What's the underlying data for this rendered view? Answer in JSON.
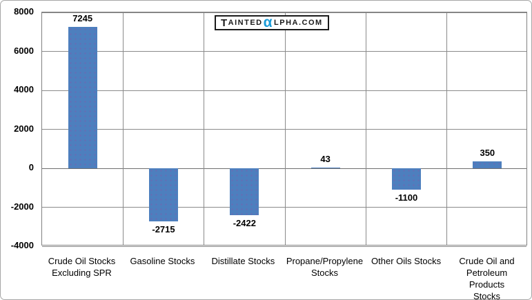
{
  "window": {
    "background": "#ffffff",
    "border_color": "#a6a6a6"
  },
  "logo": {
    "prefix_cap": "T",
    "prefix_rest": "AINTED",
    "alpha": "α",
    "suffix": "LPHA.COM",
    "alpha_color": "#1b9cd8",
    "text_color": "#1a1a1a",
    "full_text": "TaintedAlpha.com"
  },
  "chart_data": {
    "type": "bar",
    "title": "",
    "categories": [
      "Crude Oil Stocks\nExcluding SPR",
      "Gasoline Stocks",
      "Distillate  Stocks",
      "Propane/Propylene\nStocks",
      "Other Oils Stocks",
      "Crude Oil and\nPetroleum Products\nStocks"
    ],
    "values": [
      7245,
      -2715,
      -2422,
      43,
      -1100,
      350
    ],
    "value_labels": [
      "7245",
      "-2715",
      "-2422",
      "43",
      "-1100",
      "350"
    ],
    "xlabel": "",
    "ylabel": "",
    "ylim": [
      -4000,
      8000
    ],
    "yticks": [
      8000,
      6000,
      4000,
      2000,
      0,
      -2000,
      -4000
    ],
    "grid": true,
    "legend": false,
    "bar_color": "#4d7fbe",
    "gridline_color": "#8a8a8a",
    "axis_text_color": "#000000"
  }
}
